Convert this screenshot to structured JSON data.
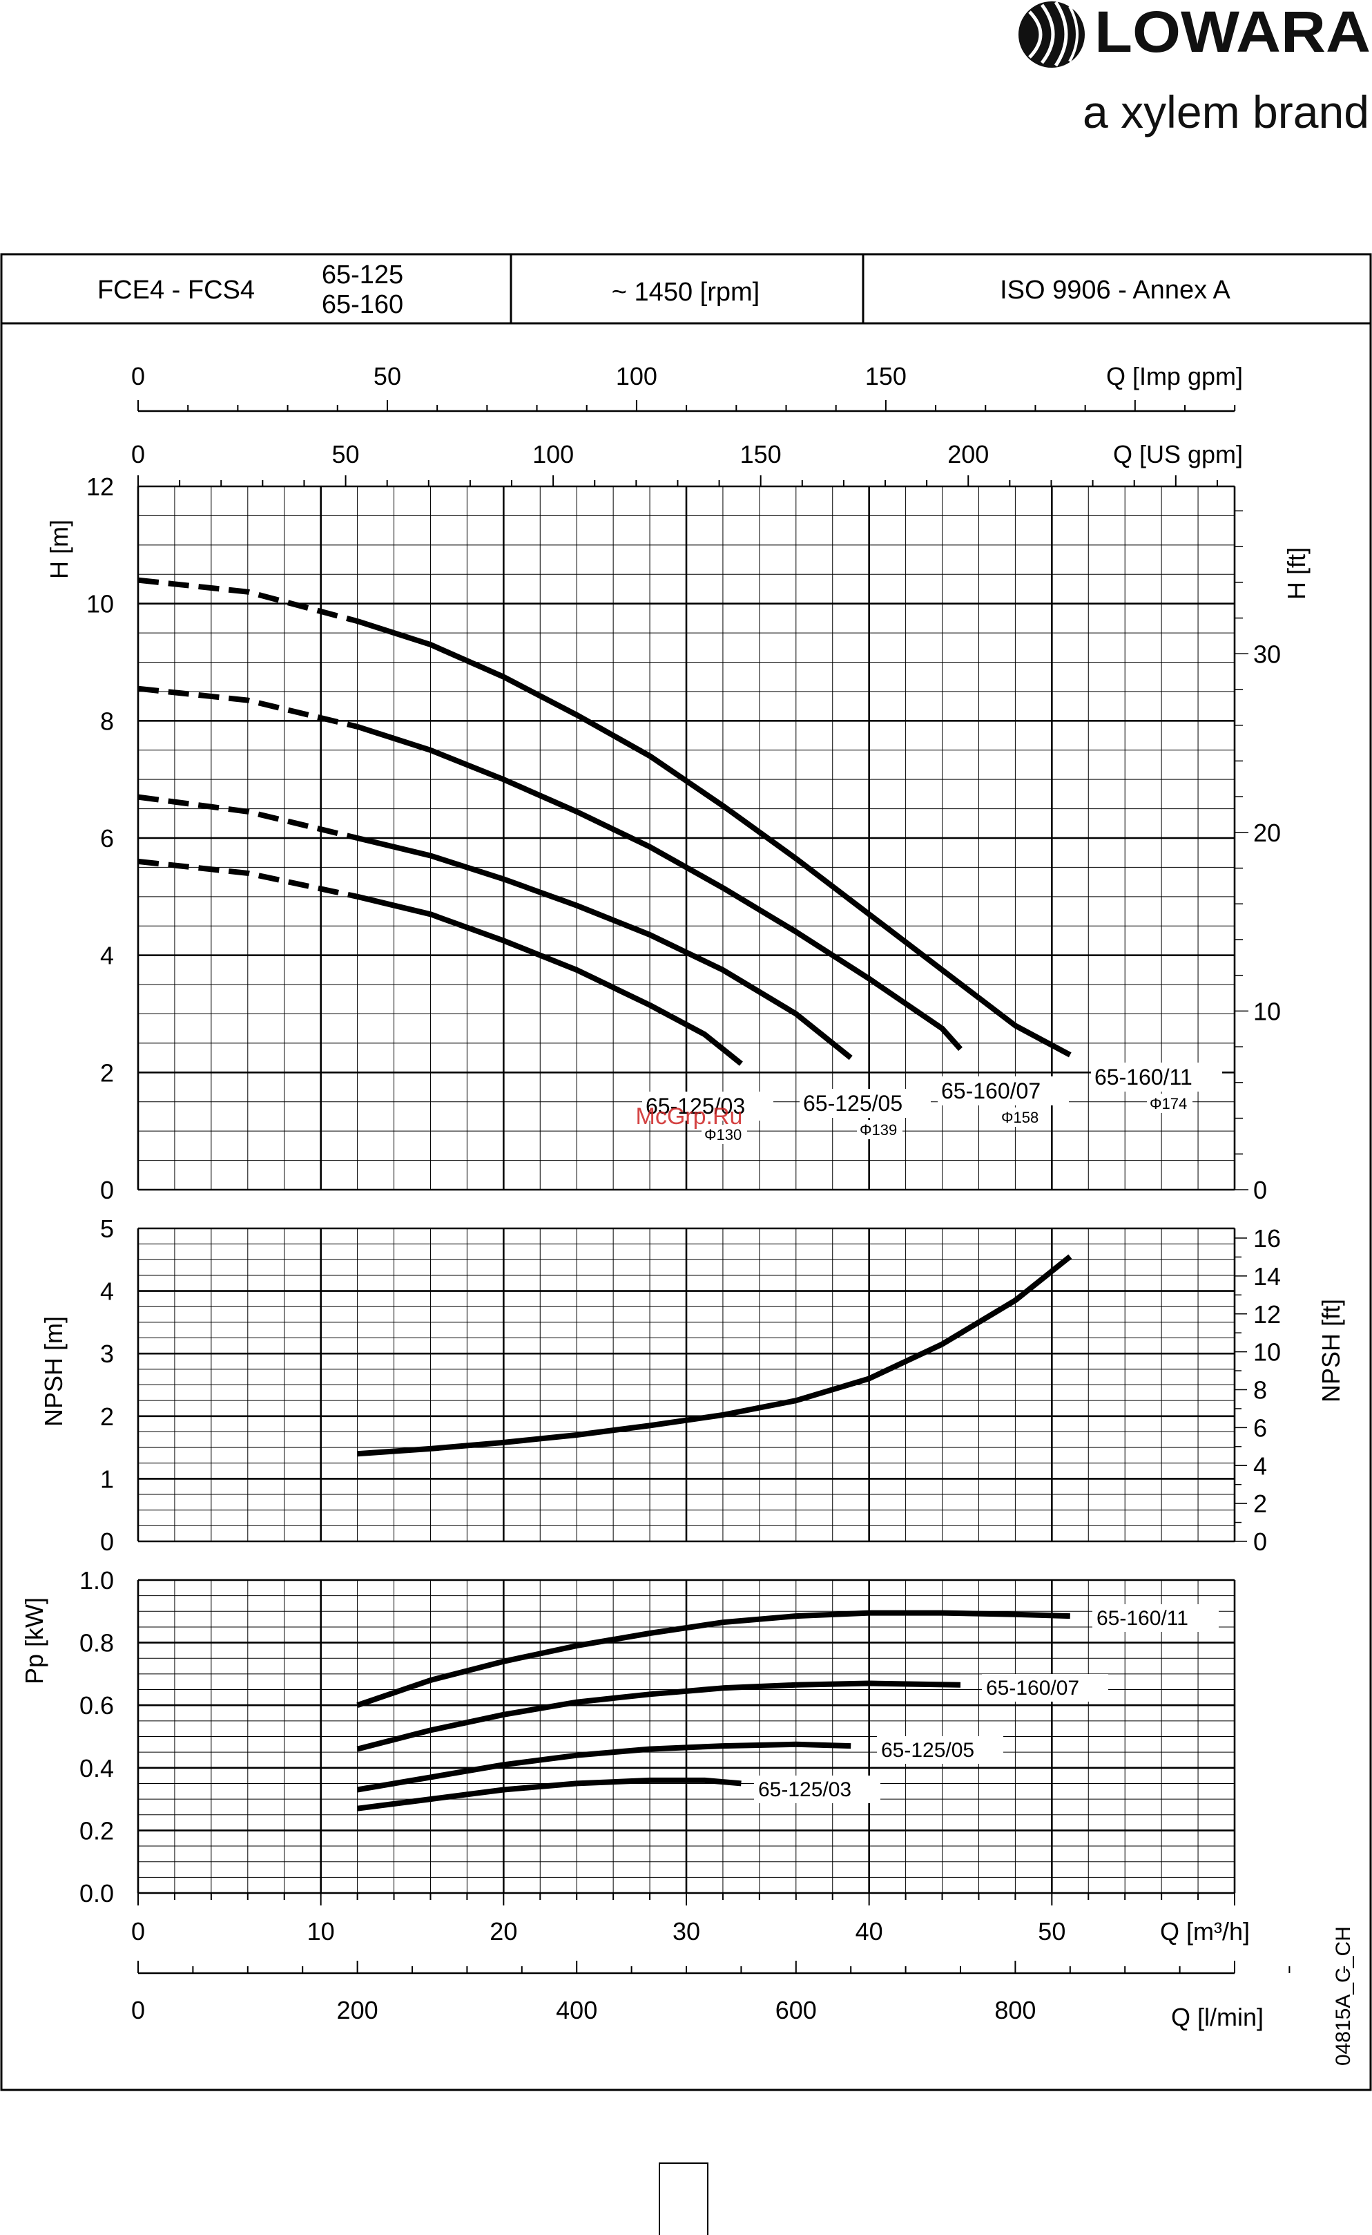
{
  "brand": {
    "name": "LOWARA",
    "tagline": "a xylem brand"
  },
  "header": {
    "series": "FCE4 - FCS4",
    "models_top": "65-125",
    "models_bottom": "65-160",
    "speed": "~ 1450 [rpm]",
    "standard": "ISO 9906 - Annex A"
  },
  "watermark": "McGrp.Ru",
  "drawing_code": "04815A_C_CH",
  "colors": {
    "curve": "#000000",
    "grid": "#000000",
    "watermark": "#cc2222"
  },
  "chart_data": [
    {
      "type": "line",
      "name": "head",
      "ylabel": "H [m]",
      "y2label": "H [ft]",
      "ylim": [
        0,
        12
      ],
      "y_ticks": [
        0,
        2,
        4,
        6,
        8,
        10,
        12
      ],
      "y2_ticks": [
        0,
        10,
        20,
        30
      ],
      "xlabel": "Q [m³/h]",
      "xlim": [
        0,
        60
      ],
      "top_axes": [
        {
          "label": "Q [Imp gpm]",
          "ticks": [
            0,
            50,
            100,
            150
          ]
        },
        {
          "label": "Q [US gpm]",
          "ticks": [
            0,
            50,
            100,
            150,
            200
          ]
        }
      ],
      "grid": true,
      "series": [
        {
          "name": "65-160/11",
          "diameter": "Φ174",
          "dashed": [
            [
              0,
              10.4
            ],
            [
              6,
              10.2
            ],
            [
              12,
              9.7
            ]
          ],
          "solid": [
            [
              12,
              9.7
            ],
            [
              16,
              9.3
            ],
            [
              20,
              8.75
            ],
            [
              24,
              8.1
            ],
            [
              28,
              7.4
            ],
            [
              32,
              6.55
            ],
            [
              36,
              5.65
            ],
            [
              40,
              4.7
            ],
            [
              44,
              3.75
            ],
            [
              48,
              2.8
            ],
            [
              51,
              2.3
            ]
          ]
        },
        {
          "name": "65-160/07",
          "diameter": "Φ158",
          "dashed": [
            [
              0,
              8.55
            ],
            [
              6,
              8.35
            ],
            [
              12,
              7.9
            ]
          ],
          "solid": [
            [
              12,
              7.9
            ],
            [
              16,
              7.5
            ],
            [
              20,
              7.0
            ],
            [
              24,
              6.45
            ],
            [
              28,
              5.85
            ],
            [
              32,
              5.15
            ],
            [
              36,
              4.4
            ],
            [
              40,
              3.6
            ],
            [
              44,
              2.75
            ],
            [
              45,
              2.4
            ]
          ]
        },
        {
          "name": "65-125/05",
          "diameter": "Φ139",
          "dashed": [
            [
              0,
              6.7
            ],
            [
              6,
              6.45
            ],
            [
              12,
              6.0
            ]
          ],
          "solid": [
            [
              12,
              6.0
            ],
            [
              16,
              5.7
            ],
            [
              20,
              5.3
            ],
            [
              24,
              4.85
            ],
            [
              28,
              4.35
            ],
            [
              32,
              3.75
            ],
            [
              36,
              3.0
            ],
            [
              39,
              2.25
            ]
          ]
        },
        {
          "name": "65-125/03",
          "diameter": "Φ130",
          "dashed": [
            [
              0,
              5.6
            ],
            [
              6,
              5.4
            ],
            [
              12,
              5.0
            ]
          ],
          "solid": [
            [
              12,
              5.0
            ],
            [
              16,
              4.7
            ],
            [
              20,
              4.25
            ],
            [
              24,
              3.75
            ],
            [
              28,
              3.15
            ],
            [
              31,
              2.65
            ],
            [
              33,
              2.15
            ]
          ]
        }
      ]
    },
    {
      "type": "line",
      "name": "npsh",
      "ylabel": "NPSH [m]",
      "y2label": "NPSH [ft]",
      "ylim": [
        0,
        5
      ],
      "y_ticks": [
        0,
        1,
        2,
        3,
        4,
        5
      ],
      "y2_ticks": [
        0,
        2,
        4,
        6,
        8,
        10,
        12,
        14,
        16
      ],
      "xlim": [
        0,
        60
      ],
      "grid": true,
      "series": [
        {
          "points": [
            [
              12,
              1.4
            ],
            [
              16,
              1.48
            ],
            [
              20,
              1.58
            ],
            [
              24,
              1.7
            ],
            [
              28,
              1.85
            ],
            [
              32,
              2.02
            ],
            [
              36,
              2.25
            ],
            [
              40,
              2.6
            ],
            [
              44,
              3.15
            ],
            [
              48,
              3.85
            ],
            [
              51,
              4.55
            ]
          ]
        }
      ]
    },
    {
      "type": "line",
      "name": "power",
      "ylabel": "Pp [kW]",
      "ylim": [
        0,
        1.0
      ],
      "y_ticks": [
        "0.0",
        "0.2",
        "0.4",
        "0.6",
        "0.8",
        "1.0"
      ],
      "xlim": [
        0,
        60
      ],
      "x_ticks": [
        0,
        10,
        20,
        30,
        40,
        50
      ],
      "xlabel": "Q [m³/h]",
      "bottom_axis": {
        "label": "Q [l/min]",
        "ticks": [
          0,
          200,
          400,
          600,
          800
        ]
      },
      "grid": true,
      "series": [
        {
          "name": "65-160/11",
          "points": [
            [
              12,
              0.6
            ],
            [
              16,
              0.68
            ],
            [
              20,
              0.74
            ],
            [
              24,
              0.79
            ],
            [
              28,
              0.83
            ],
            [
              32,
              0.865
            ],
            [
              36,
              0.885
            ],
            [
              40,
              0.895
            ],
            [
              44,
              0.895
            ],
            [
              48,
              0.89
            ],
            [
              51,
              0.885
            ]
          ]
        },
        {
          "name": "65-160/07",
          "points": [
            [
              12,
              0.46
            ],
            [
              16,
              0.52
            ],
            [
              20,
              0.57
            ],
            [
              24,
              0.61
            ],
            [
              28,
              0.635
            ],
            [
              32,
              0.655
            ],
            [
              36,
              0.665
            ],
            [
              40,
              0.67
            ],
            [
              45,
              0.665
            ]
          ]
        },
        {
          "name": "65-125/05",
          "points": [
            [
              12,
              0.33
            ],
            [
              16,
              0.37
            ],
            [
              20,
              0.41
            ],
            [
              24,
              0.44
            ],
            [
              28,
              0.46
            ],
            [
              32,
              0.47
            ],
            [
              36,
              0.475
            ],
            [
              39,
              0.47
            ]
          ]
        },
        {
          "name": "65-125/03",
          "points": [
            [
              12,
              0.27
            ],
            [
              16,
              0.3
            ],
            [
              20,
              0.33
            ],
            [
              24,
              0.35
            ],
            [
              28,
              0.36
            ],
            [
              31,
              0.36
            ],
            [
              33,
              0.35
            ]
          ]
        }
      ]
    }
  ]
}
